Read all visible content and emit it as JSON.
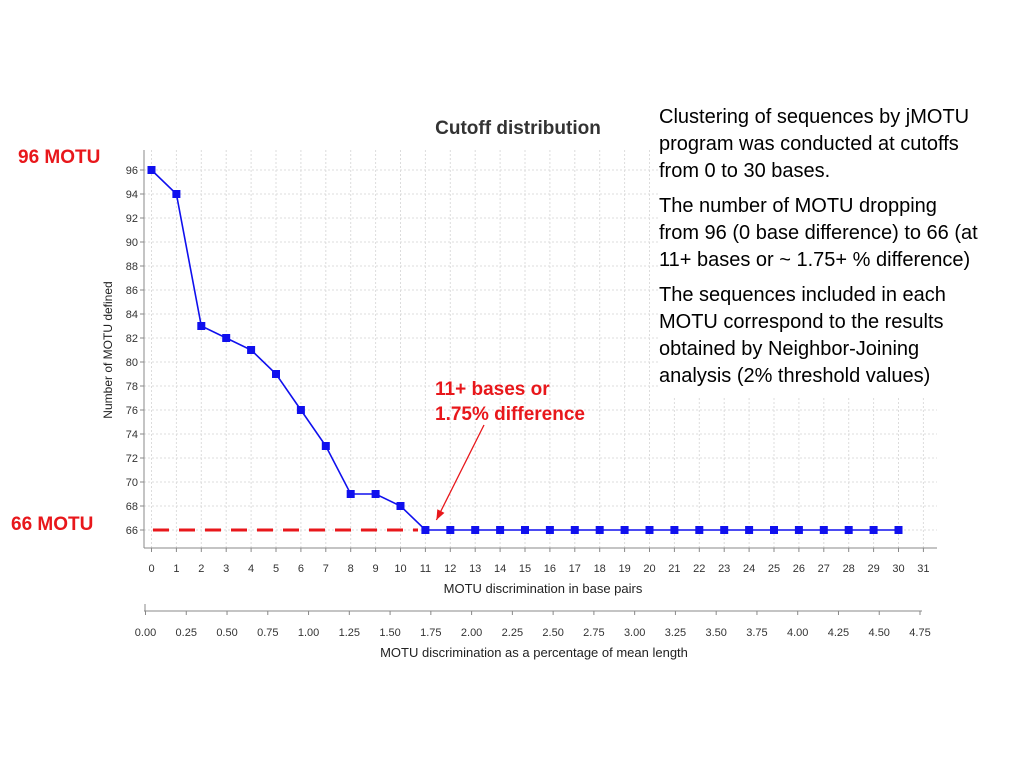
{
  "chart_data": {
    "type": "line",
    "title": "Cutoff distribution",
    "xlabel": "MOTU discrimination in base pairs",
    "ylabel": "Number of MOTU defined",
    "xlim": [
      0,
      31
    ],
    "ylim": [
      65,
      97
    ],
    "x_ticks": [
      "0",
      "1",
      "2",
      "3",
      "4",
      "5",
      "6",
      "7",
      "8",
      "9",
      "10",
      "11",
      "12",
      "13",
      "14",
      "15",
      "16",
      "17",
      "18",
      "19",
      "20",
      "21",
      "22",
      "23",
      "24",
      "25",
      "26",
      "27",
      "28",
      "29",
      "30",
      "31"
    ],
    "y_ticks": [
      "66",
      "68",
      "70",
      "72",
      "74",
      "76",
      "78",
      "80",
      "82",
      "84",
      "86",
      "88",
      "90",
      "92",
      "94",
      "96"
    ],
    "grid": true,
    "color": "#1010ee",
    "x": [
      0,
      1,
      2,
      3,
      4,
      5,
      6,
      7,
      8,
      9,
      10,
      11,
      12,
      13,
      14,
      15,
      16,
      17,
      18,
      19,
      20,
      21,
      22,
      23,
      24,
      25,
      26,
      27,
      28,
      29,
      30
    ],
    "values": [
      96,
      94,
      83,
      82,
      81,
      79,
      76,
      73,
      69,
      69,
      68,
      66,
      66,
      66,
      66,
      66,
      66,
      66,
      66,
      66,
      66,
      66,
      66,
      66,
      66,
      66,
      66,
      66,
      66,
      66,
      66
    ],
    "secondary_axis": {
      "label": "MOTU discrimination as a percentage of mean length",
      "range": [
        0,
        4.75
      ],
      "ticks": [
        "0.00",
        "0.25",
        "0.50",
        "0.75",
        "1.00",
        "1.25",
        "1.50",
        "1.75",
        "2.00",
        "2.25",
        "2.50",
        "2.75",
        "3.00",
        "3.25",
        "3.50",
        "3.75",
        "4.00",
        "4.25",
        "4.50",
        "4.75"
      ]
    },
    "annotations": {
      "top_label": "96 MOTU",
      "bottom_label": "66 MOTU",
      "cutoff_label_line1": "11+ bases or",
      "cutoff_label_line2": "1.75% difference",
      "reference_value": 66,
      "arrow_target_x": 11,
      "annotation_color": "#e8171b"
    }
  },
  "description": {
    "p1": "Clustering of  sequences by jMOTU program was conducted at cutoffs from 0 to 30 bases.",
    "p2": "The number of MOTU dropping from 96 (0 base difference) to 66 (at 11+ bases or ~ 1.75+ % difference)",
    "p3": "The sequences included in each MOTU correspond to the results obtained by Neighbor-Joining analysis (2% threshold values)"
  }
}
